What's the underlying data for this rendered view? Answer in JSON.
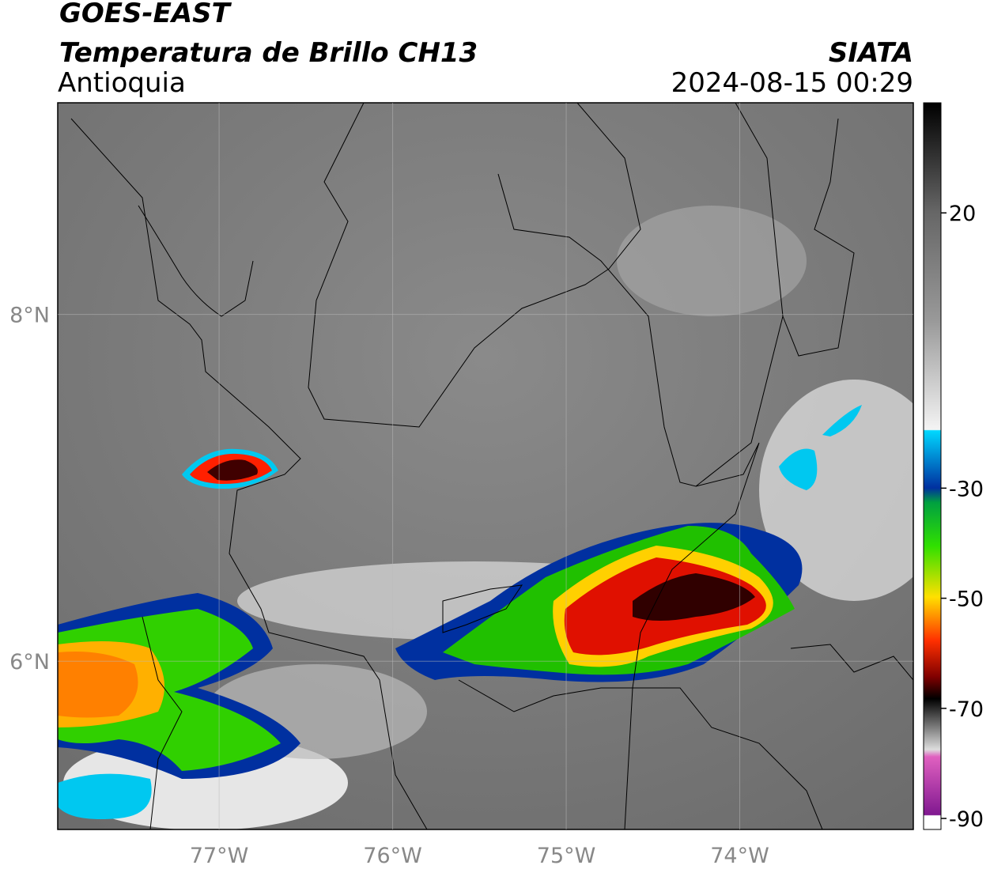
{
  "header": {
    "satellite": "GOES-EAST",
    "product": "Temperatura de Brillo CH13",
    "region": "Antioquia",
    "source": "SIATA",
    "timestamp": "2024-08-15 00:29"
  },
  "map": {
    "lonlim": [
      -77.93,
      -73.0
    ],
    "latlim": [
      5.03,
      9.22
    ],
    "lonticks": [
      {
        "value": -77,
        "label": "77°W"
      },
      {
        "value": -76,
        "label": "76°W"
      },
      {
        "value": -75,
        "label": "75°W"
      },
      {
        "value": -74,
        "label": "74°W"
      }
    ],
    "latticks": [
      {
        "value": 8,
        "label": "8°N"
      },
      {
        "value": 6,
        "label": "6°N"
      }
    ],
    "grid": true
  },
  "colorbar": {
    "lim": [
      -92,
      40
    ],
    "ticks": [
      20,
      -30,
      -50,
      -70,
      -90
    ]
  }
}
